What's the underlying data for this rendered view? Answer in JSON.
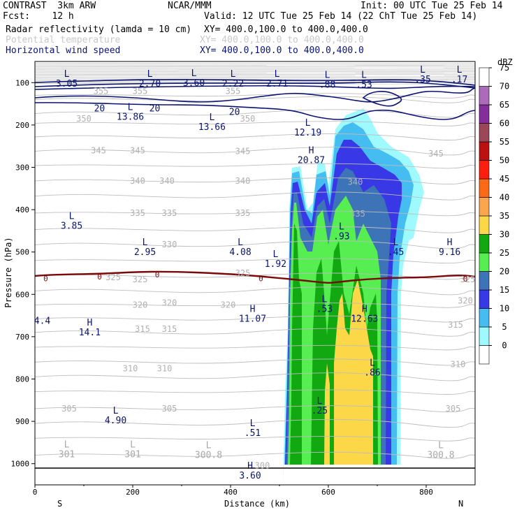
{
  "header": {
    "left_line1": "CONTRAST  3km ARW",
    "left_line2": "Fcst:    12 h",
    "center_line1": "NCAR/MMM",
    "right_line1": "Init: 00 UTC Tue 25 Feb 14",
    "right_line2": "Valid: 12 UTC Tue 25 Feb 14 (22 ChT Tue 25 Feb 14)"
  },
  "fields": [
    {
      "name": "Radar reflectivity (lamda = 10 cm)",
      "xy": "XY= 400.0,100.0 to 400.0,400.0",
      "color": "#000000"
    },
    {
      "name": "Potential temperature",
      "xy": "XY= 400.0,100.0 to 400.0,400.0",
      "color": "#c8c8c8"
    },
    {
      "name": "Horizontal wind speed",
      "xy": "XY= 400.0,100.0 to 400.0,400.0",
      "color": "#0a1470"
    }
  ],
  "chart_data": {
    "type": "heatmap",
    "xlabel": "Distance (km)",
    "ylabel": "Pressure (hPa)",
    "xlim": [
      0,
      900
    ],
    "ylim": [
      1050,
      50
    ],
    "x_ticks": [
      "0",
      "200",
      "400",
      "600",
      "800"
    ],
    "x_tick_values": [
      0,
      200,
      400,
      600,
      800
    ],
    "y_ticks": [
      "100",
      "200",
      "300",
      "400",
      "500",
      "600",
      "700",
      "800",
      "900",
      "1000"
    ],
    "y_tick_values": [
      100,
      200,
      300,
      400,
      500,
      600,
      700,
      800,
      900,
      1000
    ],
    "x_end_labels": {
      "left": "S",
      "right": "N"
    },
    "colorbar": {
      "unit": "dBZ",
      "levels": [
        "0",
        "5",
        "10",
        "15",
        "20",
        "25",
        "30",
        "35",
        "40",
        "45",
        "50",
        "55",
        "60",
        "65",
        "70",
        "75"
      ],
      "colors": [
        "#ffffff",
        "#9ffaff",
        "#45bdf0",
        "#3838e6",
        "#3d74b7",
        "#56ee50",
        "#12a812",
        "#fcd848",
        "#f9a64e",
        "#fc6a18",
        "#fe1e10",
        "#bd1010",
        "#9b4759",
        "#852d9a",
        "#ad6abb",
        "#ffffff"
      ]
    },
    "theta_labels": [
      {
        "v": "355",
        "x": 135,
        "p": 120
      },
      {
        "v": "355",
        "x": 215,
        "p": 120
      },
      {
        "v": "355",
        "x": 405,
        "p": 120
      },
      {
        "v": "350",
        "x": 100,
        "p": 185
      },
      {
        "v": "350",
        "x": 435,
        "p": 185
      },
      {
        "v": "345",
        "x": 130,
        "p": 260
      },
      {
        "v": "345",
        "x": 210,
        "p": 260
      },
      {
        "v": "345",
        "x": 425,
        "p": 262
      },
      {
        "v": "345",
        "x": 820,
        "p": 268
      },
      {
        "v": "340",
        "x": 210,
        "p": 332
      },
      {
        "v": "340",
        "x": 270,
        "p": 332
      },
      {
        "v": "340",
        "x": 425,
        "p": 332
      },
      {
        "v": "340",
        "x": 655,
        "p": 335
      },
      {
        "v": "335",
        "x": 210,
        "p": 408
      },
      {
        "v": "335",
        "x": 275,
        "p": 408
      },
      {
        "v": "335",
        "x": 425,
        "p": 408
      },
      {
        "v": "335",
        "x": 660,
        "p": 410
      },
      {
        "v": "330",
        "x": 275,
        "p": 482
      },
      {
        "v": "325",
        "x": 160,
        "p": 560
      },
      {
        "v": "325",
        "x": 215,
        "p": 565
      },
      {
        "v": "325",
        "x": 425,
        "p": 550
      },
      {
        "v": "325",
        "x": 885,
        "p": 565
      },
      {
        "v": "320",
        "x": 215,
        "p": 625
      },
      {
        "v": "320",
        "x": 275,
        "p": 620
      },
      {
        "v": "320",
        "x": 395,
        "p": 625
      },
      {
        "v": "320",
        "x": 880,
        "p": 615
      },
      {
        "v": "315",
        "x": 220,
        "p": 682
      },
      {
        "v": "315",
        "x": 275,
        "p": 682
      },
      {
        "v": "315",
        "x": 860,
        "p": 672
      },
      {
        "v": "310",
        "x": 195,
        "p": 775
      },
      {
        "v": "310",
        "x": 265,
        "p": 775
      },
      {
        "v": "310",
        "x": 865,
        "p": 765
      },
      {
        "v": "305",
        "x": 70,
        "p": 870
      },
      {
        "v": "305",
        "x": 275,
        "p": 870
      },
      {
        "v": "305",
        "x": 855,
        "p": 870
      },
      {
        "v": "300",
        "x": 465,
        "p": 1005
      }
    ],
    "extrema": [
      {
        "t": "L",
        "v": "3.05",
        "x": 65,
        "p": 90
      },
      {
        "t": "L",
        "v": "2.70",
        "x": 235,
        "p": 90
      },
      {
        "t": "L",
        "v": "3.60",
        "x": 325,
        "p": 88
      },
      {
        "t": "L",
        "v": "2.22",
        "x": 405,
        "p": 90
      },
      {
        "t": "L",
        "v": "2.71",
        "x": 495,
        "p": 90
      },
      {
        "t": "L",
        "v": ".88",
        "x": 598,
        "p": 92
      },
      {
        "t": "L",
        "v": ".53",
        "x": 673,
        "p": 92
      },
      {
        "t": "L",
        "v": ".35",
        "x": 793,
        "p": 80
      },
      {
        "t": "L",
        "v": ".17",
        "x": 868,
        "p": 80
      },
      {
        "t": "L",
        "v": "13.86",
        "x": 195,
        "p": 168
      },
      {
        "t": "L",
        "v": "13.66",
        "x": 362,
        "p": 192
      },
      {
        "t": "L",
        "v": "12.19",
        "x": 558,
        "p": 205
      },
      {
        "t": "H",
        "v": "20.87",
        "x": 565,
        "p": 270
      },
      {
        "t": "L",
        "v": "3.85",
        "x": 75,
        "p": 425
      },
      {
        "t": "L",
        "v": "2.95",
        "x": 225,
        "p": 487
      },
      {
        "t": "L",
        "v": "4.08",
        "x": 420,
        "p": 487
      },
      {
        "t": "L",
        "v": "1.92",
        "x": 492,
        "p": 515
      },
      {
        "t": "L",
        "v": ".93",
        "x": 627,
        "p": 450
      },
      {
        "t": "L",
        "v": ".45",
        "x": 738,
        "p": 487
      },
      {
        "t": "H",
        "v": "9.16",
        "x": 848,
        "p": 487
      },
      {
        "t": "",
        "v": "4.4",
        "x": 15,
        "p": 650
      },
      {
        "t": "H",
        "v": "11.07",
        "x": 445,
        "p": 645
      },
      {
        "t": "L",
        "v": ".53",
        "x": 592,
        "p": 622
      },
      {
        "t": "H",
        "v": "12.63",
        "x": 674,
        "p": 645
      },
      {
        "t": "H",
        "v": "14.1",
        "x": 112,
        "p": 677
      },
      {
        "t": "L",
        "v": ".86",
        "x": 690,
        "p": 772
      },
      {
        "t": "L",
        "v": ".25",
        "x": 582,
        "p": 862
      },
      {
        "t": "L",
        "v": "4.90",
        "x": 165,
        "p": 885
      },
      {
        "t": "L",
        "v": ".51",
        "x": 445,
        "p": 915
      },
      {
        "t": "L",
        "v": "301",
        "x": 65,
        "p": 965
      },
      {
        "t": "L",
        "v": "301",
        "x": 200,
        "p": 965
      },
      {
        "t": "L",
        "v": "300.8",
        "x": 355,
        "p": 967
      },
      {
        "t": "H",
        "v": "3.60",
        "x": 440,
        "p": 1015
      },
      {
        "t": "L",
        "v": "300.8",
        "x": 830,
        "p": 967
      }
    ],
    "wind_labels": [
      {
        "v": "20",
        "x": 132,
        "p": 160
      },
      {
        "v": "20",
        "x": 245,
        "p": 160
      },
      {
        "v": "20",
        "x": 408,
        "p": 168
      }
    ],
    "line_labels": [
      {
        "v": "0",
        "x": 22,
        "p": 562
      },
      {
        "v": "0",
        "x": 132,
        "p": 558
      },
      {
        "v": "0",
        "x": 250,
        "p": 553
      },
      {
        "v": "0",
        "x": 462,
        "p": 562
      },
      {
        "v": "0",
        "x": 880,
        "p": 563
      }
    ]
  }
}
